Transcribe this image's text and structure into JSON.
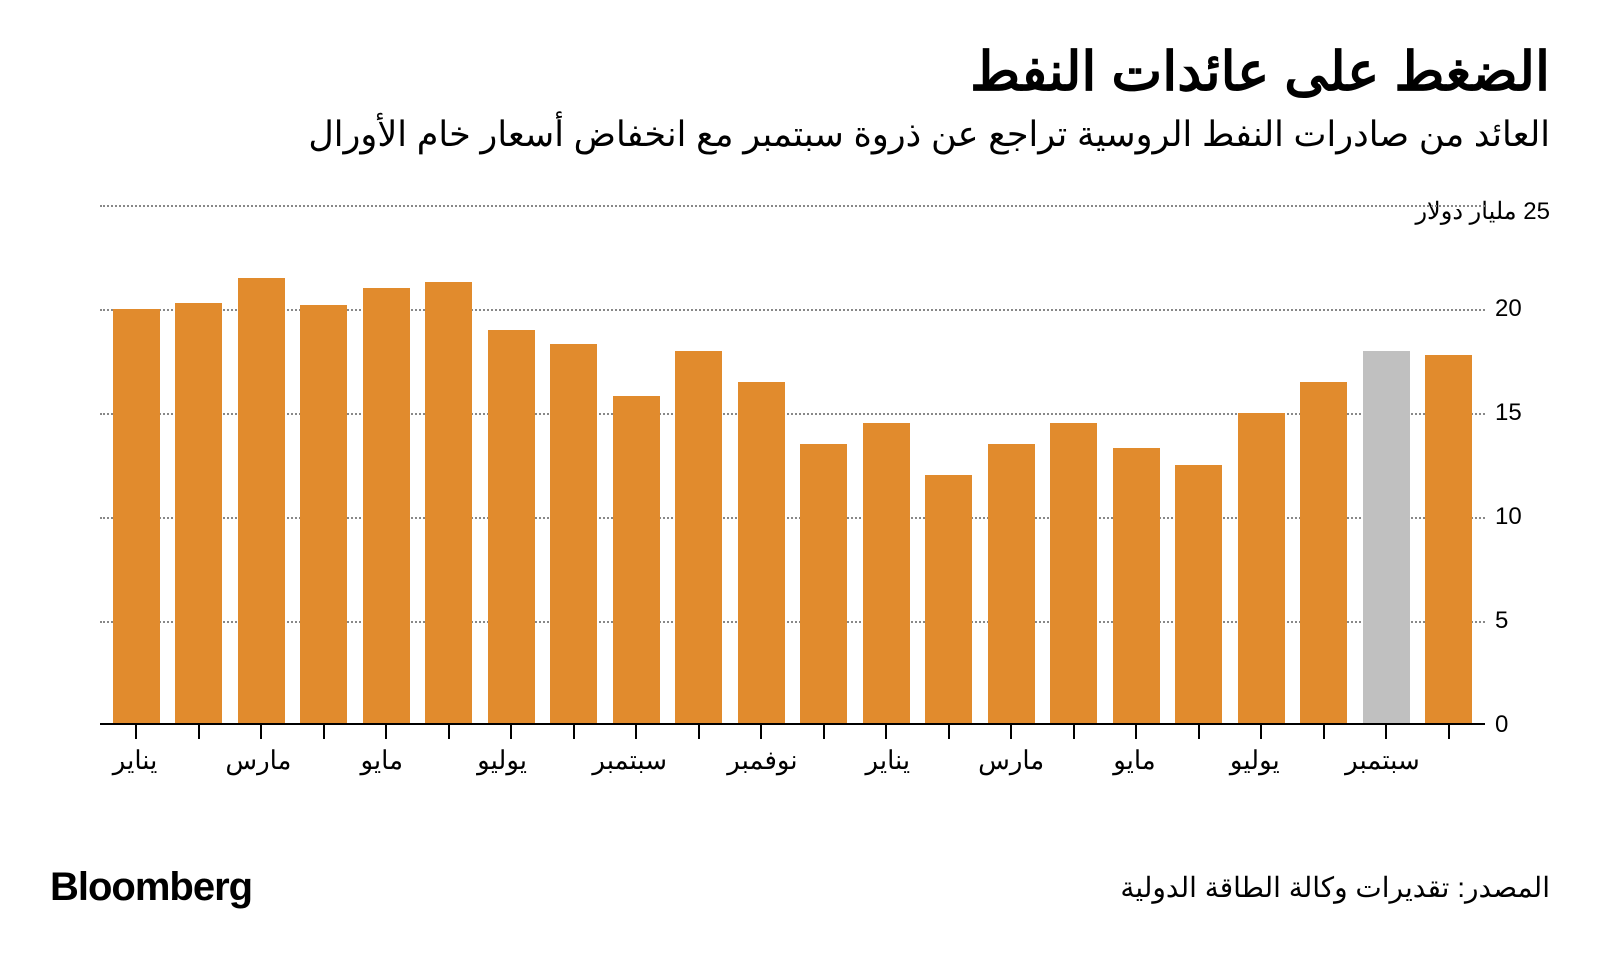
{
  "title": "الضغط على عائدات النفط",
  "subtitle": "العائد من صادرات النفط الروسية تراجع عن ذروة سبتمبر مع انخفاض أسعار خام الأورال",
  "source": "المصدر: تقديرات وكالة الطاقة الدولية",
  "brand": "Bloomberg",
  "chart": {
    "type": "bar",
    "y_unit_label": "25 مليار دولار",
    "ylim": [
      0,
      25
    ],
    "yticks": [
      0,
      5,
      10,
      15,
      20,
      25
    ],
    "ytick_labels": [
      "0",
      "5",
      "10",
      "15",
      "20",
      ""
    ],
    "grid_color": "#888888",
    "baseline_color": "#000000",
    "background_color": "#ffffff",
    "bar_default_color": "#e18b2d",
    "bar_highlight_color": "#c0c0c0",
    "bars": [
      {
        "value": 20.0,
        "color": "#e18b2d",
        "xlabel": "يناير"
      },
      {
        "value": 20.3,
        "color": "#e18b2d",
        "xlabel": ""
      },
      {
        "value": 21.5,
        "color": "#e18b2d",
        "xlabel": "مارس"
      },
      {
        "value": 20.2,
        "color": "#e18b2d",
        "xlabel": ""
      },
      {
        "value": 21.0,
        "color": "#e18b2d",
        "xlabel": "مايو"
      },
      {
        "value": 21.3,
        "color": "#e18b2d",
        "xlabel": ""
      },
      {
        "value": 19.0,
        "color": "#e18b2d",
        "xlabel": "يوليو"
      },
      {
        "value": 18.3,
        "color": "#e18b2d",
        "xlabel": ""
      },
      {
        "value": 15.8,
        "color": "#e18b2d",
        "xlabel": "سبتمبر"
      },
      {
        "value": 18.0,
        "color": "#e18b2d",
        "xlabel": ""
      },
      {
        "value": 16.5,
        "color": "#e18b2d",
        "xlabel": "نوفمبر"
      },
      {
        "value": 13.5,
        "color": "#e18b2d",
        "xlabel": ""
      },
      {
        "value": 14.5,
        "color": "#e18b2d",
        "xlabel": "يناير"
      },
      {
        "value": 12.0,
        "color": "#e18b2d",
        "xlabel": ""
      },
      {
        "value": 13.5,
        "color": "#e18b2d",
        "xlabel": "مارس"
      },
      {
        "value": 14.5,
        "color": "#e18b2d",
        "xlabel": ""
      },
      {
        "value": 13.3,
        "color": "#e18b2d",
        "xlabel": "مايو"
      },
      {
        "value": 12.5,
        "color": "#e18b2d",
        "xlabel": ""
      },
      {
        "value": 15.0,
        "color": "#e18b2d",
        "xlabel": "يوليو"
      },
      {
        "value": 16.5,
        "color": "#e18b2d",
        "xlabel": ""
      },
      {
        "value": 18.0,
        "color": "#c0c0c0",
        "xlabel": "سبتمبر"
      },
      {
        "value": 17.8,
        "color": "#e18b2d",
        "xlabel": ""
      }
    ]
  }
}
